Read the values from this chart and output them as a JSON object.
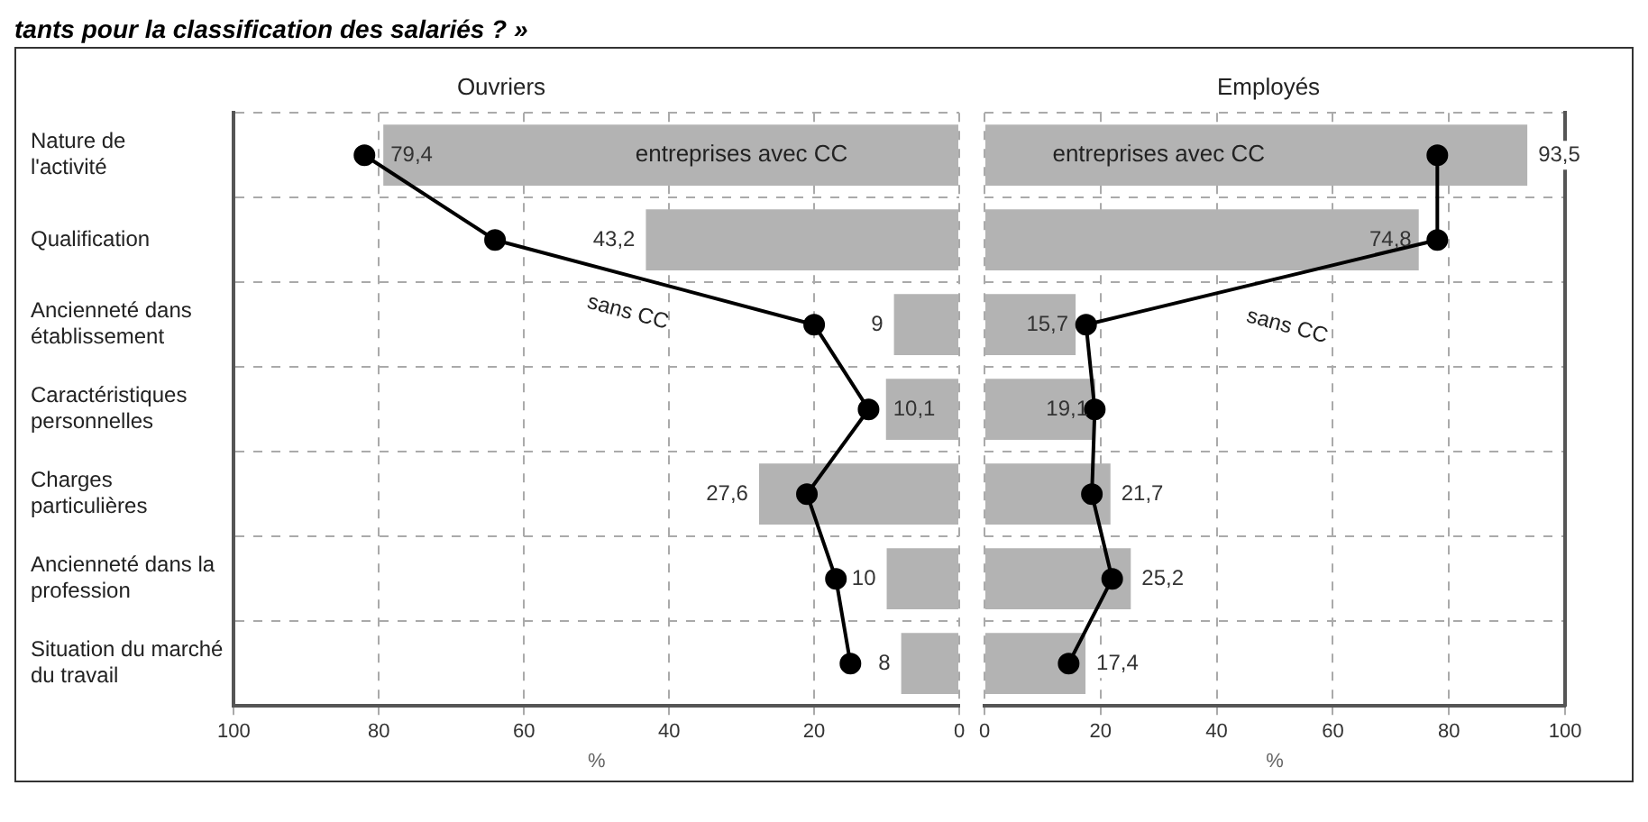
{
  "chart_data": [
    {
      "type": "bar",
      "orientation": "horizontal",
      "title": "Ouvriers",
      "xlabel": "%",
      "annotations": [
        "tants pour la classification des salariés ? »"
      ],
      "categories": [
        "Nature de l'activité",
        "Qualification",
        "Ancienneté dans établissement",
        "Caractéristiques personnelles",
        "Charges particulières",
        "Ancienneté dans la profession",
        "Situation du marché du travail"
      ],
      "xlim": [
        100,
        0
      ],
      "xticks": [
        100,
        80,
        60,
        40,
        20,
        0
      ],
      "grid": true,
      "legend": false,
      "marker": "circle",
      "series": [
        {
          "name": "entreprises avec CC",
          "color": "#b3b3b3",
          "values": [
            79.4,
            43.2,
            9,
            10.1,
            27.6,
            10,
            8
          ],
          "value_labels": [
            "79,4",
            "43,2",
            "9",
            "10,1",
            "27,6",
            "10",
            "8"
          ]
        },
        {
          "name": "sans CC",
          "type": "line",
          "color": "#000000",
          "values": [
            82,
            64,
            20,
            12.5,
            21,
            17,
            15
          ]
        }
      ]
    },
    {
      "type": "bar",
      "orientation": "horizontal",
      "title": "Employés",
      "xlabel": "%",
      "categories": [
        null,
        null,
        null,
        null,
        null,
        null,
        null
      ],
      "xlim": [
        0,
        100
      ],
      "xticks": [
        0,
        20,
        40,
        60,
        80,
        100
      ],
      "grid": true,
      "legend": false,
      "marker": "circle",
      "tick_labels": "x",
      "series": [
        {
          "name": "entreprises avec CC",
          "color": "#b3b3b3",
          "values": [
            93.5,
            74.8,
            15.7,
            19.1,
            21.7,
            25.2,
            17.4
          ],
          "value_labels": [
            "93,5",
            "74,8",
            "15,7",
            "19,1",
            "21,7",
            "25,2",
            "17,4"
          ]
        },
        {
          "name": "sans CC",
          "type": "line",
          "color": "#000000",
          "values": [
            78,
            78,
            17.5,
            19,
            18.5,
            22,
            14.5
          ]
        }
      ]
    }
  ]
}
